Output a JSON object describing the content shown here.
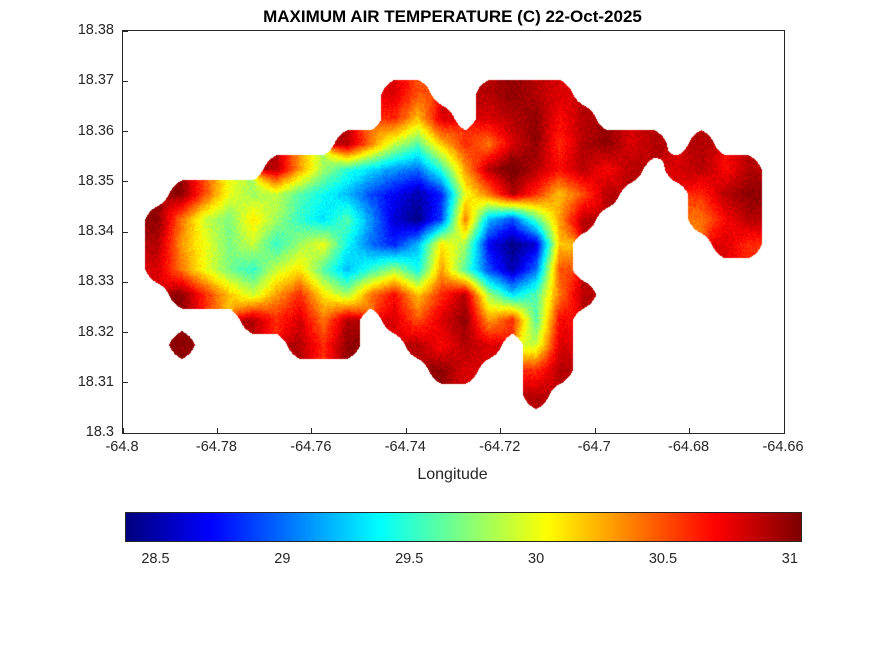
{
  "chart_data": {
    "type": "heatmap",
    "title": "MAXIMUM AIR TEMPERATURE (C) 22-Oct-2025",
    "xlabel": "Longitude",
    "ylabel": "",
    "xlim": [
      -64.8,
      -64.66
    ],
    "ylim": [
      18.3,
      18.38
    ],
    "xticks": [
      -64.8,
      -64.78,
      -64.76,
      -64.74,
      -64.72,
      -64.7,
      -64.68,
      -64.66
    ],
    "xtick_labels": [
      "-64.8",
      "-64.78",
      "-64.76",
      "-64.74",
      "-64.72",
      "-64.7",
      "-64.68",
      "-64.66"
    ],
    "yticks": [
      18.3,
      18.31,
      18.32,
      18.33,
      18.34,
      18.35,
      18.36,
      18.37,
      18.38
    ],
    "ytick_labels": [
      "18.3",
      "18.31",
      "18.32",
      "18.33",
      "18.34",
      "18.35",
      "18.36",
      "18.37",
      "18.38"
    ],
    "colormap": "jet",
    "clim": [
      28.38,
      31.04
    ],
    "grid_lines": false,
    "colorbar": {
      "orientation": "horizontal",
      "ticks": [
        28.5,
        29,
        29.5,
        30,
        30.5,
        31
      ],
      "tick_labels": [
        "28.5",
        "29",
        "29.5",
        "30",
        "30.5",
        "31"
      ]
    },
    "grid": {
      "lon_start": -64.805,
      "lon_step": 0.005,
      "lat_start": 18.38,
      "lat_step": -0.005,
      "ncols": 30,
      "nrows": 16,
      "values": [
        [
          null,
          null,
          null,
          null,
          null,
          null,
          null,
          null,
          null,
          null,
          null,
          null,
          null,
          null,
          null,
          null,
          null,
          null,
          null,
          null,
          null,
          null,
          null,
          null,
          null,
          null,
          null,
          null,
          null,
          null
        ],
        [
          null,
          null,
          null,
          null,
          null,
          null,
          null,
          null,
          null,
          null,
          null,
          null,
          null,
          null,
          null,
          null,
          null,
          null,
          null,
          null,
          null,
          null,
          null,
          null,
          null,
          null,
          null,
          null,
          null,
          null
        ],
        [
          null,
          null,
          null,
          null,
          null,
          null,
          null,
          null,
          null,
          null,
          null,
          null,
          30.8,
          30.5,
          null,
          null,
          30.9,
          31.0,
          30.9,
          30.8,
          null,
          null,
          null,
          null,
          null,
          null,
          null,
          null,
          null,
          null
        ],
        [
          null,
          null,
          null,
          null,
          null,
          null,
          null,
          null,
          null,
          null,
          null,
          null,
          30.6,
          30.2,
          30.8,
          null,
          30.8,
          30.9,
          31.0,
          30.7,
          30.9,
          null,
          null,
          null,
          null,
          null,
          null,
          null,
          null,
          null
        ],
        [
          null,
          null,
          null,
          null,
          null,
          null,
          null,
          null,
          null,
          null,
          30.9,
          30.4,
          29.9,
          29.6,
          30.2,
          30.6,
          30.4,
          30.8,
          31.0,
          30.6,
          30.9,
          31.0,
          30.8,
          30.9,
          null,
          30.9,
          null,
          null,
          null,
          null
        ],
        [
          null,
          null,
          null,
          null,
          null,
          null,
          null,
          30.9,
          30.3,
          29.8,
          29.5,
          29.3,
          29.1,
          29.0,
          29.5,
          30.3,
          30.9,
          31.1,
          30.9,
          30.7,
          30.9,
          30.7,
          30.9,
          null,
          30.8,
          30.9,
          30.7,
          30.9,
          null,
          null
        ],
        [
          null,
          null,
          null,
          31.0,
          30.5,
          30.0,
          29.8,
          29.9,
          29.6,
          29.4,
          29.2,
          28.9,
          28.7,
          28.5,
          28.8,
          30.0,
          30.4,
          30.9,
          30.6,
          30.2,
          30.5,
          30.9,
          null,
          null,
          null,
          30.6,
          30.9,
          31.0,
          null,
          null
        ],
        [
          null,
          null,
          31.0,
          30.4,
          29.9,
          29.7,
          30.1,
          29.8,
          29.5,
          29.3,
          29.6,
          29.1,
          28.6,
          28.4,
          28.9,
          30.4,
          29.2,
          28.9,
          29.6,
          30.3,
          30.9,
          null,
          null,
          null,
          null,
          30.4,
          30.7,
          30.9,
          null,
          null
        ],
        [
          null,
          null,
          30.9,
          30.3,
          30.0,
          29.7,
          29.9,
          29.5,
          29.8,
          30.0,
          29.4,
          29.0,
          28.8,
          29.2,
          30.1,
          29.8,
          28.7,
          28.4,
          28.6,
          30.2,
          null,
          null,
          null,
          null,
          null,
          null,
          30.8,
          30.6,
          null,
          null
        ],
        [
          null,
          null,
          30.8,
          30.4,
          30.0,
          29.7,
          29.5,
          29.9,
          30.1,
          29.6,
          29.2,
          29.5,
          29.8,
          29.4,
          30.3,
          29.6,
          28.9,
          28.5,
          29.0,
          30.5,
          null,
          null,
          null,
          null,
          null,
          null,
          null,
          null,
          null,
          null
        ],
        [
          null,
          null,
          null,
          31.0,
          30.6,
          30.2,
          29.9,
          30.3,
          30.6,
          30.1,
          29.8,
          30.4,
          30.7,
          30.2,
          30.6,
          30.9,
          29.8,
          29.3,
          29.6,
          30.4,
          30.9,
          null,
          null,
          null,
          null,
          null,
          null,
          null,
          null,
          null
        ],
        [
          null,
          null,
          null,
          null,
          null,
          null,
          30.9,
          30.6,
          30.8,
          30.4,
          30.9,
          null,
          30.8,
          30.5,
          30.8,
          31.0,
          30.3,
          30.6,
          29.6,
          30.7,
          null,
          null,
          null,
          null,
          null,
          null,
          null,
          null,
          null,
          null
        ],
        [
          null,
          null,
          null,
          31.0,
          null,
          null,
          null,
          null,
          30.9,
          30.6,
          31.0,
          null,
          null,
          30.9,
          30.7,
          30.9,
          30.8,
          null,
          29.9,
          30.8,
          null,
          null,
          null,
          null,
          null,
          null,
          null,
          null,
          null,
          null
        ],
        [
          null,
          null,
          null,
          null,
          null,
          null,
          null,
          null,
          null,
          null,
          null,
          null,
          null,
          null,
          31.0,
          30.8,
          null,
          null,
          30.6,
          30.9,
          null,
          null,
          null,
          null,
          null,
          null,
          null,
          null,
          null,
          null
        ],
        [
          null,
          null,
          null,
          null,
          null,
          null,
          null,
          null,
          null,
          null,
          null,
          null,
          null,
          null,
          null,
          null,
          null,
          null,
          30.9,
          null,
          null,
          null,
          null,
          null,
          null,
          null,
          null,
          null,
          null,
          null
        ],
        [
          null,
          null,
          null,
          null,
          null,
          null,
          null,
          null,
          null,
          null,
          null,
          null,
          null,
          null,
          null,
          null,
          null,
          null,
          null,
          null,
          null,
          null,
          null,
          null,
          null,
          null,
          null,
          null,
          null,
          null
        ]
      ]
    }
  },
  "style": {
    "axis_color": "#262626",
    "title_color": "#000000",
    "background": "#ffffff"
  }
}
